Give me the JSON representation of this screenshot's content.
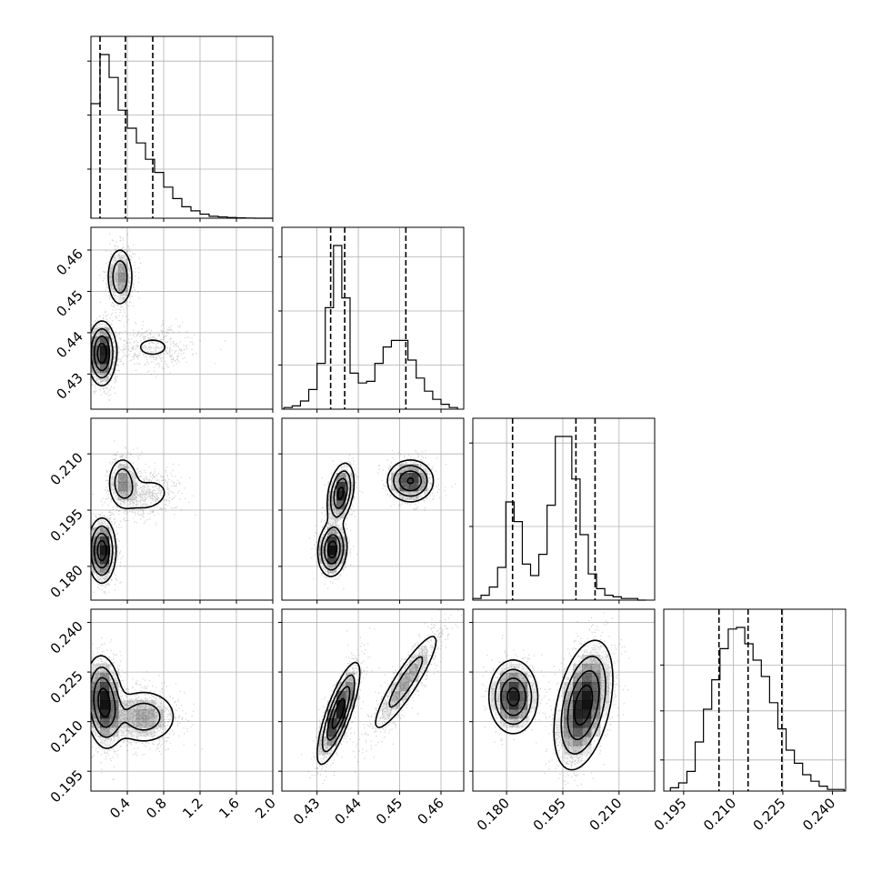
{
  "chart_data": {
    "type": "corner",
    "n_params": 4,
    "params": [
      {
        "range": [
          0.0,
          2.0
        ],
        "ticks": [
          0.4,
          0.8,
          1.2,
          1.6,
          2.0
        ],
        "tick_labels": [
          "0.4",
          "0.8",
          "1.2",
          "1.6",
          "2.0"
        ]
      },
      {
        "range": [
          0.4215,
          0.4655
        ],
        "ticks": [
          0.43,
          0.44,
          0.45,
          0.46
        ],
        "tick_labels": [
          "0.43",
          "0.44",
          "0.45",
          "0.46"
        ]
      },
      {
        "range": [
          0.171,
          0.2195
        ],
        "ticks": [
          0.18,
          0.195,
          0.21
        ],
        "tick_labels": [
          "0.180",
          "0.195",
          "0.210"
        ]
      },
      {
        "range": [
          0.189,
          0.244
        ],
        "ticks": [
          0.195,
          0.21,
          0.225,
          0.24
        ],
        "tick_labels": [
          "0.195",
          "0.210",
          "0.225",
          "0.240"
        ]
      }
    ],
    "histograms": [
      {
        "bin_edges": [
          0.0,
          0.1,
          0.2,
          0.3,
          0.4,
          0.5,
          0.6,
          0.7,
          0.8,
          0.9,
          1.0,
          1.1,
          1.2,
          1.3,
          1.4,
          1.5,
          1.6,
          1.7,
          1.8,
          1.9,
          2.0
        ],
        "counts": [
          0.7,
          1.0,
          0.86,
          0.66,
          0.55,
          0.46,
          0.36,
          0.28,
          0.19,
          0.12,
          0.07,
          0.045,
          0.025,
          0.012,
          0.008,
          0.004,
          0.002,
          0.001,
          0.0,
          0.0
        ],
        "quantiles": [
          0.1,
          0.38,
          0.68
        ],
        "y_ticks": [
          0.3,
          0.63,
          0.96
        ]
      },
      {
        "bin_edges": [
          0.422,
          0.424,
          0.426,
          0.428,
          0.43,
          0.432,
          0.434,
          0.436,
          0.438,
          0.44,
          0.442,
          0.444,
          0.446,
          0.448,
          0.45,
          0.452,
          0.454,
          0.456,
          0.458,
          0.46,
          0.462,
          0.464
        ],
        "counts": [
          0.01,
          0.02,
          0.05,
          0.12,
          0.28,
          0.62,
          1.0,
          0.68,
          0.22,
          0.16,
          0.17,
          0.28,
          0.38,
          0.42,
          0.42,
          0.3,
          0.19,
          0.11,
          0.06,
          0.03,
          0.01
        ],
        "quantiles": [
          0.4333,
          0.4367,
          0.4515
        ],
        "y_ticks": [
          0.27,
          0.6,
          0.93
        ]
      },
      {
        "bin_edges": [
          0.171,
          0.1732,
          0.1754,
          0.1776,
          0.1798,
          0.182,
          0.1842,
          0.1864,
          0.1886,
          0.1908,
          0.193,
          0.1952,
          0.1974,
          0.1996,
          0.2018,
          0.204,
          0.2062,
          0.2084,
          0.2106,
          0.2128,
          0.215,
          0.2172
        ],
        "counts": [
          0.01,
          0.03,
          0.08,
          0.2,
          0.6,
          0.48,
          0.22,
          0.15,
          0.28,
          0.58,
          1.0,
          1.0,
          0.74,
          0.4,
          0.16,
          0.07,
          0.03,
          0.02,
          0.01,
          0.01,
          0.0
        ],
        "quantiles": [
          0.1816,
          0.1985,
          0.2036
        ],
        "y_ticks": [
          0.45,
          0.96
        ]
      },
      {
        "bin_edges": [
          0.191,
          0.1935,
          0.196,
          0.1985,
          0.201,
          0.2035,
          0.206,
          0.2085,
          0.211,
          0.2135,
          0.216,
          0.2185,
          0.221,
          0.2235,
          0.226,
          0.2285,
          0.231,
          0.2335,
          0.236,
          0.2385,
          0.241,
          0.2435
        ],
        "counts": [
          0.02,
          0.05,
          0.12,
          0.3,
          0.5,
          0.68,
          0.87,
          0.99,
          1.0,
          0.9,
          0.8,
          0.7,
          0.54,
          0.38,
          0.25,
          0.17,
          0.1,
          0.06,
          0.03,
          0.01,
          0.01
        ],
        "quantiles": [
          0.2057,
          0.2145,
          0.2247
        ],
        "y_ticks": [
          0.19,
          0.49,
          0.77
        ]
      }
    ],
    "joint_modes": [
      {
        "x": 0,
        "y": 1,
        "modes": [
          {
            "mx": 0.12,
            "my": 0.435,
            "sx": 0.075,
            "sy": 0.0038,
            "rho": 0.0,
            "w": 0.55
          },
          {
            "mx": 0.32,
            "my": 0.4535,
            "sx": 0.075,
            "sy": 0.0038,
            "rho": 0.0,
            "w": 0.28
          },
          {
            "mx": 0.68,
            "my": 0.4365,
            "sx": 0.22,
            "sy": 0.0028,
            "rho": 0.0,
            "w": 0.17
          }
        ]
      },
      {
        "x": 0,
        "y": 2,
        "modes": [
          {
            "mx": 0.12,
            "my": 0.1842,
            "sx": 0.075,
            "sy": 0.0042,
            "rho": 0.0,
            "w": 0.55
          },
          {
            "mx": 0.35,
            "my": 0.2025,
            "sx": 0.085,
            "sy": 0.0035,
            "rho": 0.0,
            "w": 0.25
          },
          {
            "mx": 0.62,
            "my": 0.199,
            "sx": 0.18,
            "sy": 0.0032,
            "rho": 0.2,
            "w": 0.2
          }
        ]
      },
      {
        "x": 0,
        "y": 3,
        "modes": [
          {
            "mx": 0.14,
            "my": 0.216,
            "sx": 0.1,
            "sy": 0.0068,
            "rho": -0.15,
            "w": 0.62
          },
          {
            "mx": 0.58,
            "my": 0.2115,
            "sx": 0.2,
            "sy": 0.0045,
            "rho": 0.0,
            "w": 0.38
          }
        ]
      },
      {
        "x": 1,
        "y": 2,
        "modes": [
          {
            "mx": 0.4337,
            "my": 0.1845,
            "sx": 0.0017,
            "sy": 0.0035,
            "rho": 0.1,
            "w": 0.33
          },
          {
            "mx": 0.4357,
            "my": 0.1995,
            "sx": 0.0016,
            "sy": 0.004,
            "rho": 0.35,
            "w": 0.3
          },
          {
            "mx": 0.4526,
            "my": 0.2028,
            "sx": 0.0028,
            "sy": 0.0028,
            "rho": 0.0,
            "w": 0.37
          }
        ]
      },
      {
        "x": 1,
        "y": 3,
        "modes": [
          {
            "mx": 0.4352,
            "my": 0.2125,
            "sx": 0.0025,
            "sy": 0.0075,
            "rho": 0.8,
            "w": 0.6
          },
          {
            "mx": 0.4515,
            "my": 0.222,
            "sx": 0.0045,
            "sy": 0.0085,
            "rho": 0.9,
            "w": 0.4
          }
        ]
      },
      {
        "x": 2,
        "y": 3,
        "modes": [
          {
            "mx": 0.1818,
            "my": 0.2175,
            "sx": 0.0032,
            "sy": 0.0055,
            "rho": 0.0,
            "w": 0.33
          },
          {
            "mx": 0.2005,
            "my": 0.215,
            "sx": 0.0038,
            "sy": 0.0095,
            "rho": 0.4,
            "w": 0.67
          }
        ]
      }
    ]
  }
}
